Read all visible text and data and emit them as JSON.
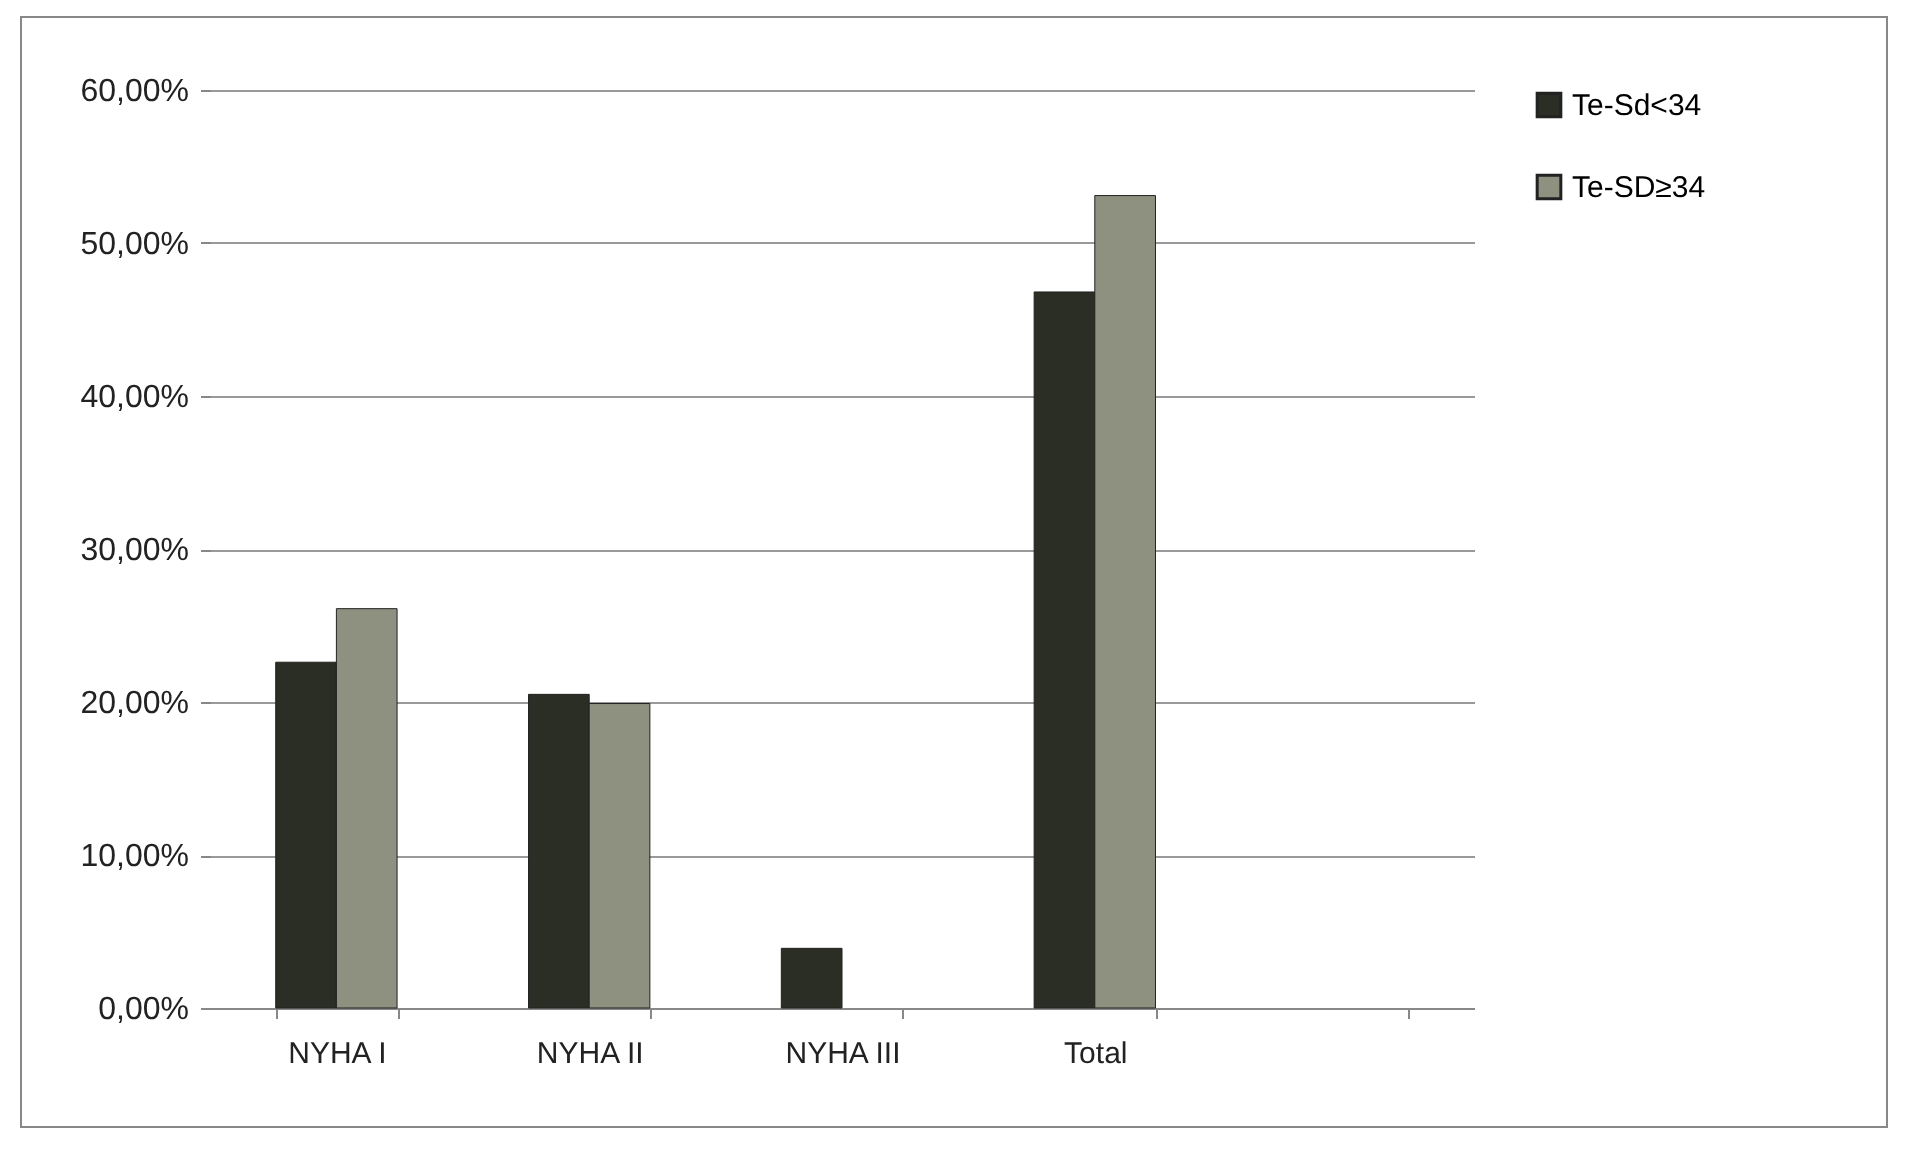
{
  "chart_data": {
    "type": "bar",
    "categories": [
      "NYHA I",
      "NYHA II",
      "NYHA III",
      "Total",
      null
    ],
    "series": [
      {
        "name": "Te-Sd<34",
        "color": "#2a2e24",
        "values": [
          22.6,
          20.5,
          3.9,
          46.8,
          null
        ]
      },
      {
        "name": "Te-SD≥34",
        "color": "#8e9080",
        "values": [
          26.1,
          19.9,
          null,
          53.1,
          null
        ]
      }
    ],
    "ylim": [
      0,
      60
    ],
    "yticks": [
      {
        "value": 0,
        "label": "0,00%"
      },
      {
        "value": 10,
        "label": "10,00%"
      },
      {
        "value": 20,
        "label": "20,00%"
      },
      {
        "value": 30,
        "label": "30,00%"
      },
      {
        "value": 40,
        "label": "40,00%"
      },
      {
        "value": 50,
        "label": "50,00%"
      },
      {
        "value": 60,
        "label": "60,00%"
      }
    ],
    "grid": "y",
    "legend": "right"
  }
}
